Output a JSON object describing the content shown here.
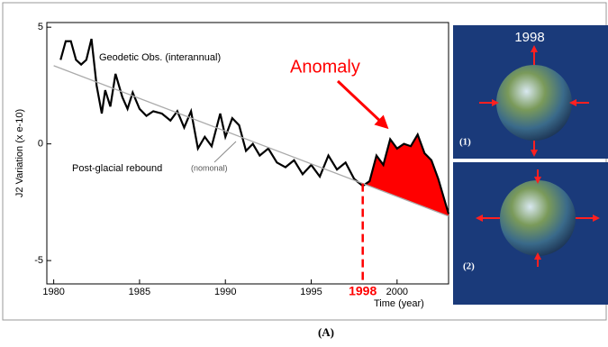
{
  "chart_data": {
    "type": "line",
    "ylabel": "J2 Variation (x e-10)",
    "xlabel": "Time (year)",
    "xlim": [
      1979.6,
      2003.0
    ],
    "ylim": [
      -6.0,
      5.2
    ],
    "xticks": [
      1980,
      1985,
      1990,
      1995,
      2000
    ],
    "yticks": [
      -5,
      0,
      5
    ],
    "series": [
      {
        "color": "#000000",
        "x": [
          1980.4,
          1980.7,
          1981.0,
          1981.3,
          1981.6,
          1981.9,
          1982.2,
          1982.5,
          1982.8,
          1983.0,
          1983.3,
          1983.6,
          1984.0,
          1984.3,
          1984.6,
          1985.0,
          1985.4,
          1985.8,
          1986.3,
          1986.8,
          1987.2,
          1987.6,
          1988.0,
          1988.4,
          1988.8,
          1989.2,
          1989.7,
          1990.0,
          1990.4,
          1990.8,
          1991.2,
          1991.6,
          1992.0,
          1992.5,
          1993.0,
          1993.5,
          1994.0,
          1994.5,
          1995.0,
          1995.5,
          1996.0,
          1996.5,
          1997.0,
          1997.5,
          1998.0,
          1998.4,
          1998.8,
          1999.2,
          1999.6,
          2000.0,
          2000.4,
          2000.8,
          2001.2,
          2001.6,
          2002.0,
          2002.4,
          2002.8,
          2003.0
        ],
        "values": [
          3.6,
          4.4,
          4.4,
          3.6,
          3.4,
          3.6,
          4.5,
          2.5,
          1.3,
          2.3,
          1.6,
          3.0,
          2.0,
          1.5,
          2.2,
          1.5,
          1.2,
          1.4,
          1.3,
          1.0,
          1.4,
          0.7,
          1.4,
          -0.2,
          0.3,
          -0.1,
          1.3,
          0.3,
          1.1,
          0.8,
          -0.3,
          0.0,
          -0.5,
          -0.2,
          -0.8,
          -1.0,
          -0.7,
          -1.3,
          -0.9,
          -1.4,
          -0.5,
          -1.1,
          -0.8,
          -1.5,
          -1.8,
          -1.6,
          -0.5,
          -0.9,
          0.2,
          -0.2,
          0.0,
          -0.1,
          0.4,
          -0.4,
          -0.7,
          -1.5,
          -2.5,
          -3.0
        ]
      },
      {
        "color": "#aaaaaa",
        "x": [
          1980.0,
          2003.0
        ],
        "values": [
          3.35,
          -3.1
        ]
      }
    ],
    "annotations": {
      "observed": "Geodetic Obs. (interannual)",
      "rebound": "Post-glacial rebound",
      "rebound_note": "(nomonal)",
      "anomaly": "Anomaly"
    },
    "highlight": {
      "x": 1998,
      "label": "1998",
      "color": "#ff0000"
    }
  },
  "panels": [
    {
      "title": "1998",
      "label": "(1)"
    },
    {
      "label": "(2)"
    }
  ],
  "caption": "(A)"
}
